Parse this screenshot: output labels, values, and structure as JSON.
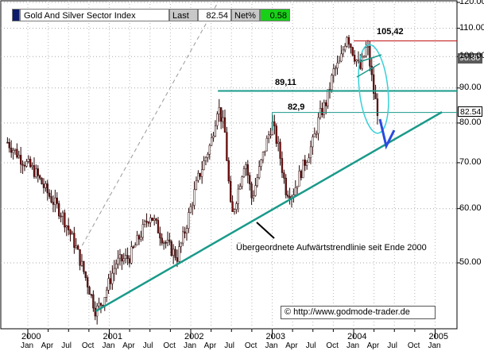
{
  "header": {
    "title": "Gold And Silver Sector Index",
    "last_label": "Last",
    "last_value": "82.54",
    "net_label": "Net%",
    "net_value": "0.58"
  },
  "annotations": {
    "high_label": "105,42",
    "level1_label": "89,11",
    "level2_label": "82,9",
    "trendline_text": "Übergeordnete Aufwärtstrendlinie seit Ende 2000",
    "copyright_symbol": "©",
    "copyright_text": "http://www.godmode-trader.de"
  },
  "price_tags": {
    "current": "82.54",
    "secondary": "98.80"
  },
  "colors": {
    "candle_down": "#7a0e0e",
    "candle_up": "#ffffff",
    "trendline": "#1a9a8a",
    "resistance_red": "#c01010",
    "arrow_blue": "#2a4adf",
    "ellipse_cyan": "#38d0d8"
  },
  "chart_data": {
    "type": "candlestick",
    "y_scale": "log",
    "ylim": [
      40,
      120
    ],
    "yticks": [
      "120.00",
      "110.00",
      "100.00",
      "90.00",
      "80.00",
      "70.00",
      "60.00",
      "50.00"
    ],
    "xlim": [
      "1999-10",
      "2005-02"
    ],
    "years": [
      "2000",
      "2001",
      "2002",
      "2003",
      "2004",
      "2005"
    ],
    "months": [
      "Jan",
      "Apr",
      "Jul",
      "Oct",
      "Jan",
      "Apr",
      "Jul",
      "Oct",
      "Jan",
      "Apr",
      "Jul",
      "Oct",
      "Jan",
      "Apr",
      "Jul",
      "Oct",
      "Jan",
      "Apr",
      "Jul",
      "Oct",
      "Jan"
    ],
    "close_path": [
      {
        "date": "1999-10",
        "value": 75
      },
      {
        "date": "1999-12",
        "value": 71
      },
      {
        "date": "2000-02",
        "value": 68
      },
      {
        "date": "2000-04",
        "value": 63
      },
      {
        "date": "2000-06",
        "value": 59
      },
      {
        "date": "2000-08",
        "value": 53
      },
      {
        "date": "2000-10",
        "value": 46
      },
      {
        "date": "2000-11",
        "value": 42.5
      },
      {
        "date": "2000-12",
        "value": 44
      },
      {
        "date": "2001-02",
        "value": 50
      },
      {
        "date": "2001-04",
        "value": 51
      },
      {
        "date": "2001-06",
        "value": 56
      },
      {
        "date": "2001-07",
        "value": 59
      },
      {
        "date": "2001-09",
        "value": 54
      },
      {
        "date": "2001-11",
        "value": 51
      },
      {
        "date": "2001-12",
        "value": 55
      },
      {
        "date": "2002-02",
        "value": 66
      },
      {
        "date": "2002-04",
        "value": 75
      },
      {
        "date": "2002-05",
        "value": 85
      },
      {
        "date": "2002-06",
        "value": 78
      },
      {
        "date": "2002-07",
        "value": 58
      },
      {
        "date": "2002-08",
        "value": 64
      },
      {
        "date": "2002-09",
        "value": 71
      },
      {
        "date": "2002-10",
        "value": 62
      },
      {
        "date": "2002-12",
        "value": 74
      },
      {
        "date": "2003-01",
        "value": 80
      },
      {
        "date": "2003-02",
        "value": 73
      },
      {
        "date": "2003-03",
        "value": 64
      },
      {
        "date": "2003-04",
        "value": 63
      },
      {
        "date": "2003-05",
        "value": 67
      },
      {
        "date": "2003-07",
        "value": 75
      },
      {
        "date": "2003-08",
        "value": 82
      },
      {
        "date": "2003-09",
        "value": 86
      },
      {
        "date": "2003-10",
        "value": 95
      },
      {
        "date": "2003-11",
        "value": 98
      },
      {
        "date": "2003-12",
        "value": 108
      },
      {
        "date": "2004-01",
        "value": 101
      },
      {
        "date": "2004-02",
        "value": 96
      },
      {
        "date": "2004-03",
        "value": 104
      },
      {
        "date": "2004-04",
        "value": 88
      },
      {
        "date": "2004-04-20",
        "value": 82.54
      }
    ],
    "levels": [
      {
        "label": "105,42",
        "value": 105.42
      },
      {
        "label": "89,11",
        "value": 89.11
      },
      {
        "label": "82,9",
        "value": 82.9
      }
    ],
    "trendline": [
      {
        "date": "2000-11",
        "value": 42.5
      },
      {
        "date": "2005-02",
        "value": 83
      }
    ],
    "channel_line": [
      {
        "date": "2000-09",
        "value": 53
      },
      {
        "date": "2002-05",
        "value": 120
      }
    ]
  }
}
